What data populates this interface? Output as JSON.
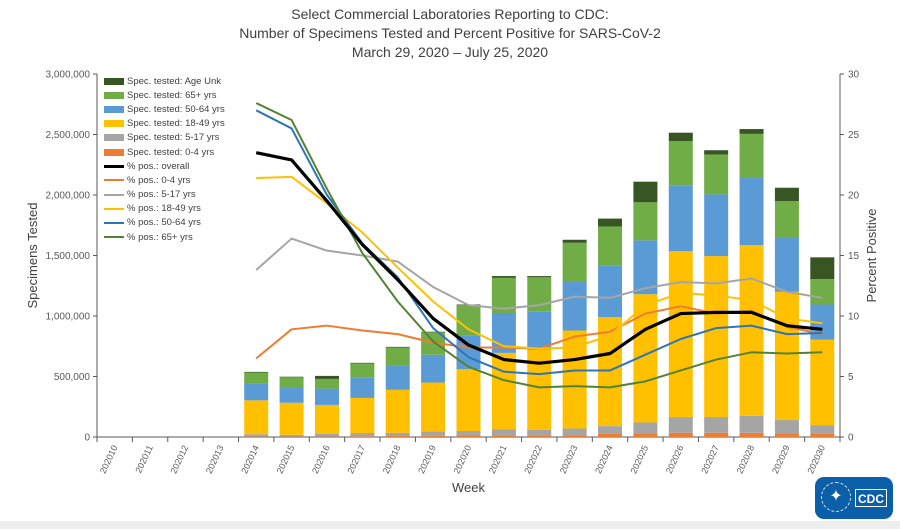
{
  "title": {
    "line1": "Select Commercial Laboratories Reporting to CDC:",
    "line2": "Number of Specimens Tested and Percent Positive for SARS-CoV-2",
    "line3": "March 29, 2020 – July 25, 2020"
  },
  "logo": {
    "text": "CDC"
  },
  "chart_data": {
    "type": "bar+line",
    "title": "Select Commercial Laboratories Reporting to CDC: Number of Specimens Tested and Percent Positive for SARS-CoV-2, March 29, 2020 – July 25, 2020",
    "xlabel": "Week",
    "ylabel": "Specimens Tested",
    "y2label": "Percent Positive",
    "ylim": [
      0,
      3000000
    ],
    "y2lim": [
      0,
      30
    ],
    "yticks": [
      "0",
      "500,000",
      "1,000,000",
      "1,500,000",
      "2,000,000",
      "2,500,000",
      "3,000,000"
    ],
    "y2ticks": [
      "0",
      "5",
      "10",
      "15",
      "20",
      "25",
      "30"
    ],
    "legend_position": "top-left",
    "categories": [
      "202010",
      "202011",
      "202012",
      "202013",
      "202014",
      "202015",
      "202016",
      "202017",
      "202018",
      "202019",
      "202020",
      "202021",
      "202022",
      "202023",
      "202024",
      "202025",
      "202026",
      "202027",
      "202028",
      "202029",
      "202030"
    ],
    "bar_series": [
      {
        "name": "Spec. tested: 0-4 yrs",
        "color": "#ED7D31",
        "values": [
          0,
          0,
          0,
          0,
          3000,
          3000,
          3000,
          5000,
          8000,
          10000,
          12000,
          15000,
          15000,
          15000,
          25000,
          30000,
          35000,
          35000,
          35000,
          30000,
          25000
        ]
      },
      {
        "name": "Spec. tested: 5-17 yrs",
        "color": "#A5A5A5",
        "values": [
          0,
          0,
          0,
          0,
          20000,
          15000,
          22000,
          28000,
          27000,
          35000,
          38000,
          50000,
          45000,
          55000,
          65000,
          90000,
          130000,
          130000,
          140000,
          110000,
          70000
        ]
      },
      {
        "name": "Spec. tested: 18-49 yrs",
        "color": "#FFC000",
        "values": [
          0,
          0,
          0,
          0,
          280000,
          265000,
          240000,
          290000,
          355000,
          405000,
          510000,
          630000,
          660000,
          810000,
          900000,
          1060000,
          1370000,
          1330000,
          1410000,
          1060000,
          710000
        ]
      },
      {
        "name": "Spec. tested: 50-64 yrs",
        "color": "#5B9BD5",
        "values": [
          0,
          0,
          0,
          0,
          140000,
          130000,
          135000,
          170000,
          200000,
          230000,
          280000,
          330000,
          315000,
          405000,
          430000,
          445000,
          545000,
          510000,
          555000,
          445000,
          290000
        ]
      },
      {
        "name": "Spec. tested: 65+ yrs",
        "color": "#70AD47",
        "values": [
          0,
          0,
          0,
          0,
          90000,
          80000,
          80000,
          115000,
          150000,
          185000,
          250000,
          290000,
          285000,
          320000,
          320000,
          315000,
          365000,
          330000,
          365000,
          305000,
          210000
        ]
      },
      {
        "name": "Spec. tested: Age Unk",
        "color": "#375623",
        "values": [
          0,
          0,
          0,
          0,
          5000,
          5000,
          25000,
          5000,
          5000,
          5000,
          5000,
          15000,
          10000,
          25000,
          65000,
          170000,
          70000,
          35000,
          40000,
          110000,
          180000
        ]
      }
    ],
    "line_series": [
      {
        "name": "% pos.: overall",
        "color": "#000000",
        "values": [
          null,
          null,
          null,
          null,
          23.5,
          22.9,
          19.5,
          15.9,
          13.0,
          9.8,
          7.6,
          6.4,
          6.1,
          6.4,
          6.9,
          8.9,
          10.2,
          10.3,
          10.3,
          9.2,
          8.9
        ]
      },
      {
        "name": "% pos.: 0-4 yrs",
        "color": "#ED7D31",
        "values": [
          null,
          null,
          null,
          null,
          6.5,
          8.9,
          9.2,
          8.8,
          8.5,
          7.8,
          7.4,
          7.4,
          7.3,
          8.3,
          8.7,
          10.2,
          10.8,
          10.2,
          10.4,
          9.1,
          8.5
        ]
      },
      {
        "name": "% pos.: 5-17 yrs",
        "color": "#A5A5A5",
        "values": [
          null,
          null,
          null,
          null,
          13.8,
          16.4,
          15.4,
          15.0,
          14.5,
          12.4,
          10.9,
          10.6,
          10.9,
          11.6,
          11.5,
          12.3,
          12.8,
          12.7,
          13.1,
          12.0,
          11.5
        ]
      },
      {
        "name": "% pos.: 18-49 yrs",
        "color": "#FFC000",
        "values": [
          null,
          null,
          null,
          null,
          21.4,
          21.5,
          19.3,
          16.9,
          14.0,
          11.2,
          8.9,
          7.5,
          7.3,
          7.4,
          8.4,
          10.9,
          11.9,
          11.7,
          11.3,
          9.8,
          9.4
        ]
      },
      {
        "name": "% pos.: 50-64 yrs",
        "color": "#2E75B6",
        "values": [
          null,
          null,
          null,
          null,
          27.0,
          25.5,
          20.0,
          16.0,
          13.2,
          9.0,
          6.6,
          5.4,
          5.2,
          5.5,
          5.5,
          6.8,
          8.1,
          9.0,
          9.2,
          8.5,
          8.6
        ]
      },
      {
        "name": "% pos.: 65+ yrs",
        "color": "#548235",
        "values": [
          null,
          null,
          null,
          null,
          27.6,
          26.2,
          20.5,
          15.2,
          11.2,
          7.9,
          5.8,
          4.7,
          4.1,
          4.2,
          4.1,
          4.6,
          5.5,
          6.4,
          7.0,
          6.9,
          7.0
        ]
      }
    ]
  }
}
